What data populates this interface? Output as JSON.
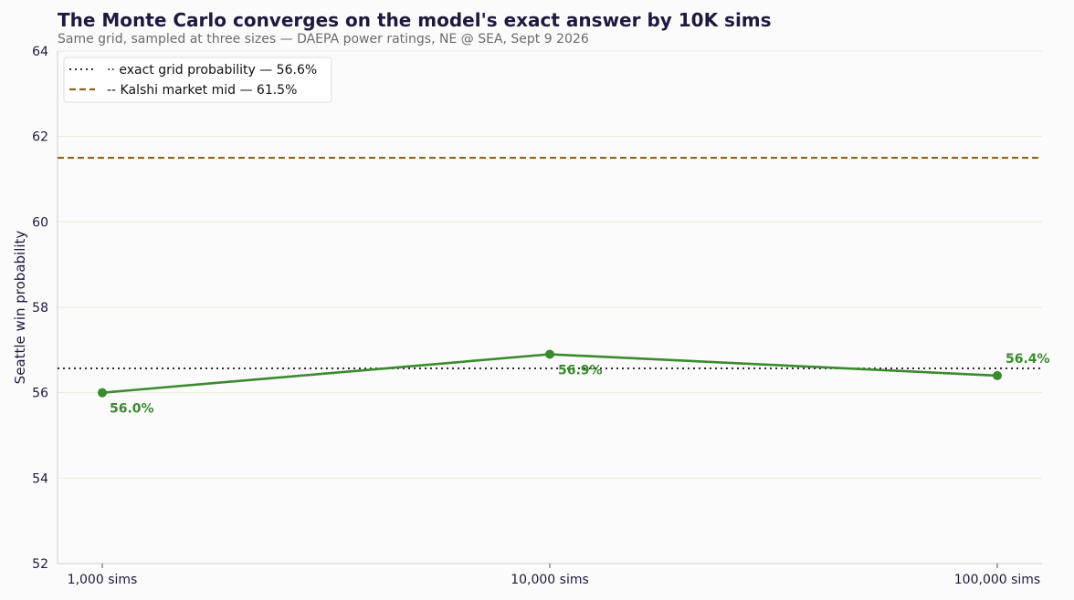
{
  "chart_data": {
    "type": "line",
    "title": "The Monte Carlo converges on the model's exact answer by 10K sims",
    "subtitle": "Same grid, sampled at three sizes — DAEPA power ratings, NE @ SEA, Sept 9 2026",
    "xlabel": "",
    "ylabel": "Seattle win probability",
    "x_scale": "log",
    "categories": [
      "1,000 sims",
      "10,000 sims",
      "100,000 sims"
    ],
    "x": [
      1000,
      10000,
      100000
    ],
    "series": [
      {
        "values": [
          56.0,
          56.9,
          56.4
        ],
        "labels": [
          "56.0%",
          "56.9%",
          "56.4%"
        ],
        "color": "#3a8a2e"
      }
    ],
    "reference_lines": [
      {
        "name": "·· exact grid probability — 56.6%",
        "value": 56.57,
        "style": "dotted",
        "color": "#111111"
      },
      {
        "name": "-- Kalshi market mid — 61.5%",
        "value": 61.5,
        "style": "dashed",
        "color": "#8b6422"
      }
    ],
    "ylim": [
      52,
      64
    ],
    "yticks": [
      "52",
      "54",
      "56",
      "58",
      "60",
      "62",
      "64"
    ],
    "grid": "horizontal",
    "legend": "top-left"
  }
}
